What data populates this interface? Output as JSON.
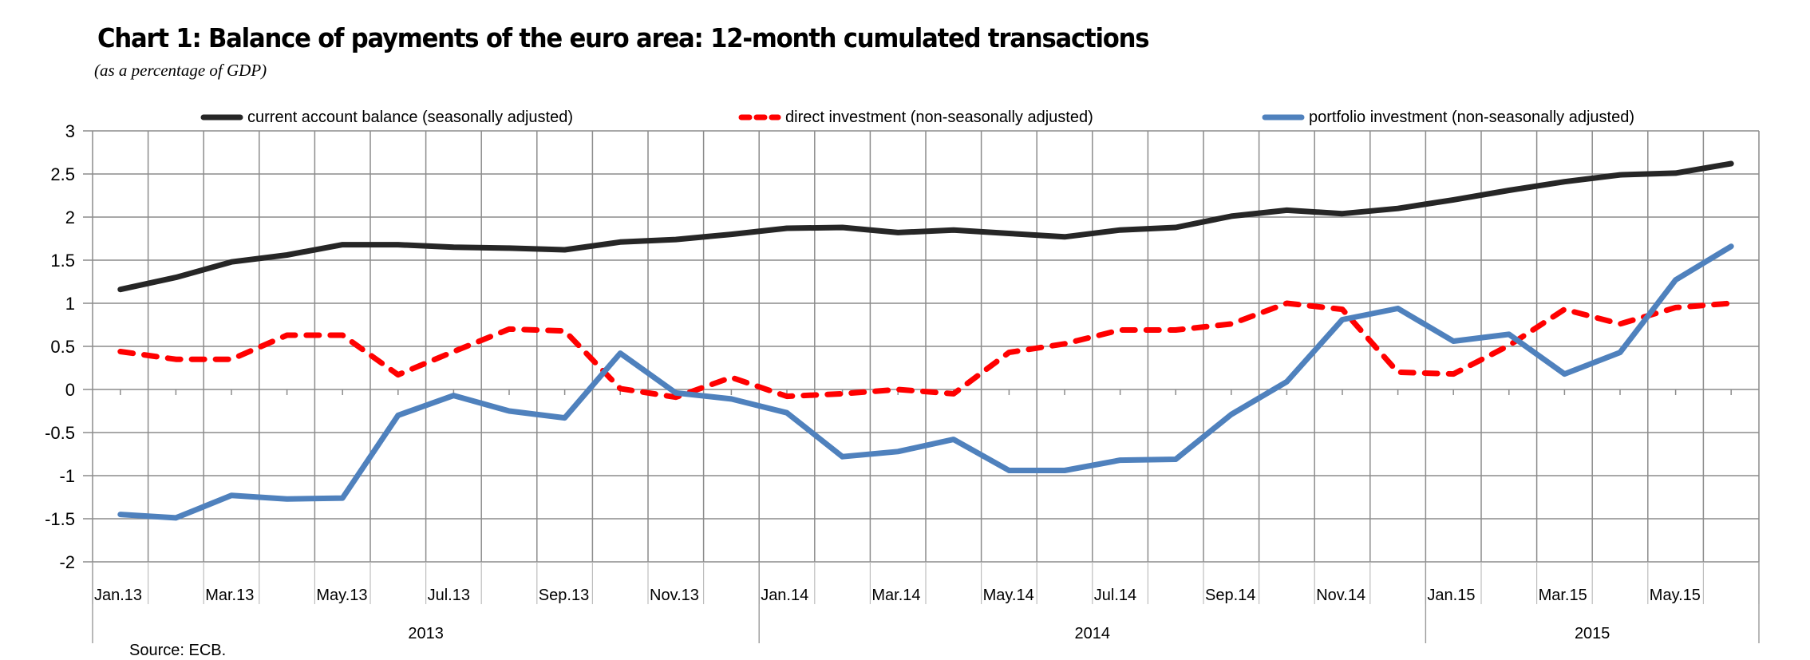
{
  "chart_data": {
    "type": "line",
    "title": "Chart 1: Balance of payments of the euro area: 12-month cumulated transactions",
    "subtitle": "(as a percentage of GDP)",
    "source": "Source: ECB.",
    "xlabel": "",
    "ylabel": "",
    "ylim": [
      -2,
      3
    ],
    "yticks": [
      3,
      2.5,
      2,
      1.5,
      1,
      0.5,
      0,
      -0.5,
      -1,
      -1.5,
      -2
    ],
    "ytick_labels": [
      "3",
      "2.5",
      "2",
      "1.5",
      "1",
      "0.5",
      "0",
      "-0.5",
      "-1",
      "-1.5",
      "-2"
    ],
    "grid": true,
    "legend_position": "top",
    "categories": [
      "Jan.13",
      "Feb.13",
      "Mar.13",
      "Apr.13",
      "May.13",
      "Jun.13",
      "Jul.13",
      "Aug.13",
      "Sep.13",
      "Oct.13",
      "Nov.13",
      "Dec.13",
      "Jan.14",
      "Feb.14",
      "Mar.14",
      "Apr.14",
      "May.14",
      "Jun.14",
      "Jul.14",
      "Aug.14",
      "Sep.14",
      "Oct.14",
      "Nov.14",
      "Dec.14",
      "Jan.15",
      "Feb.15",
      "Mar.15",
      "Apr.15",
      "May.15",
      "Jun.15"
    ],
    "xtick_labels": [
      "Jan.13",
      "",
      "Mar.13",
      "",
      "May.13",
      "",
      "Jul.13",
      "",
      "Sep.13",
      "",
      "Nov.13",
      "",
      "Jan.14",
      "",
      "Mar.14",
      "",
      "May.14",
      "",
      "Jul.14",
      "",
      "Sep.14",
      "",
      "Nov.14",
      "",
      "Jan.15",
      "",
      "Mar.15",
      "",
      "May.15",
      ""
    ],
    "year_groups": [
      {
        "label": "2013",
        "months": 12
      },
      {
        "label": "2014",
        "months": 12
      },
      {
        "label": "2015",
        "months": 6
      }
    ],
    "series": [
      {
        "name": "current account balance (seasonally adjusted)",
        "color": "#262626",
        "style": "solid",
        "values": [
          1.16,
          1.3,
          1.48,
          1.56,
          1.68,
          1.68,
          1.65,
          1.64,
          1.62,
          1.71,
          1.74,
          1.8,
          1.87,
          1.88,
          1.82,
          1.85,
          1.81,
          1.77,
          1.85,
          1.88,
          2.01,
          2.08,
          2.04,
          2.1,
          2.2,
          2.31,
          2.41,
          2.49,
          2.51,
          2.62
        ]
      },
      {
        "name": "direct investment (non-seasonally adjusted)",
        "color": "#ff0000",
        "style": "dashed",
        "values": [
          0.44,
          0.35,
          0.35,
          0.63,
          0.63,
          0.17,
          0.44,
          0.7,
          0.68,
          0.01,
          -0.09,
          0.14,
          -0.08,
          -0.05,
          0.0,
          -0.05,
          0.43,
          0.53,
          0.69,
          0.69,
          0.76,
          1.0,
          0.93,
          0.2,
          0.18,
          0.51,
          0.93,
          0.76,
          0.95,
          1.0
        ]
      },
      {
        "name": "portfolio investment (non-seasonally adjusted)",
        "color": "#4f81bd",
        "style": "solid",
        "values": [
          -1.45,
          -1.49,
          -1.23,
          -1.27,
          -1.26,
          -0.3,
          -0.07,
          -0.25,
          -0.33,
          0.42,
          -0.04,
          -0.11,
          -0.27,
          -0.78,
          -0.72,
          -0.58,
          -0.94,
          -0.94,
          -0.82,
          -0.81,
          -0.29,
          0.09,
          0.81,
          0.94,
          0.56,
          0.64,
          0.18,
          0.43,
          1.27,
          1.66
        ]
      }
    ]
  }
}
